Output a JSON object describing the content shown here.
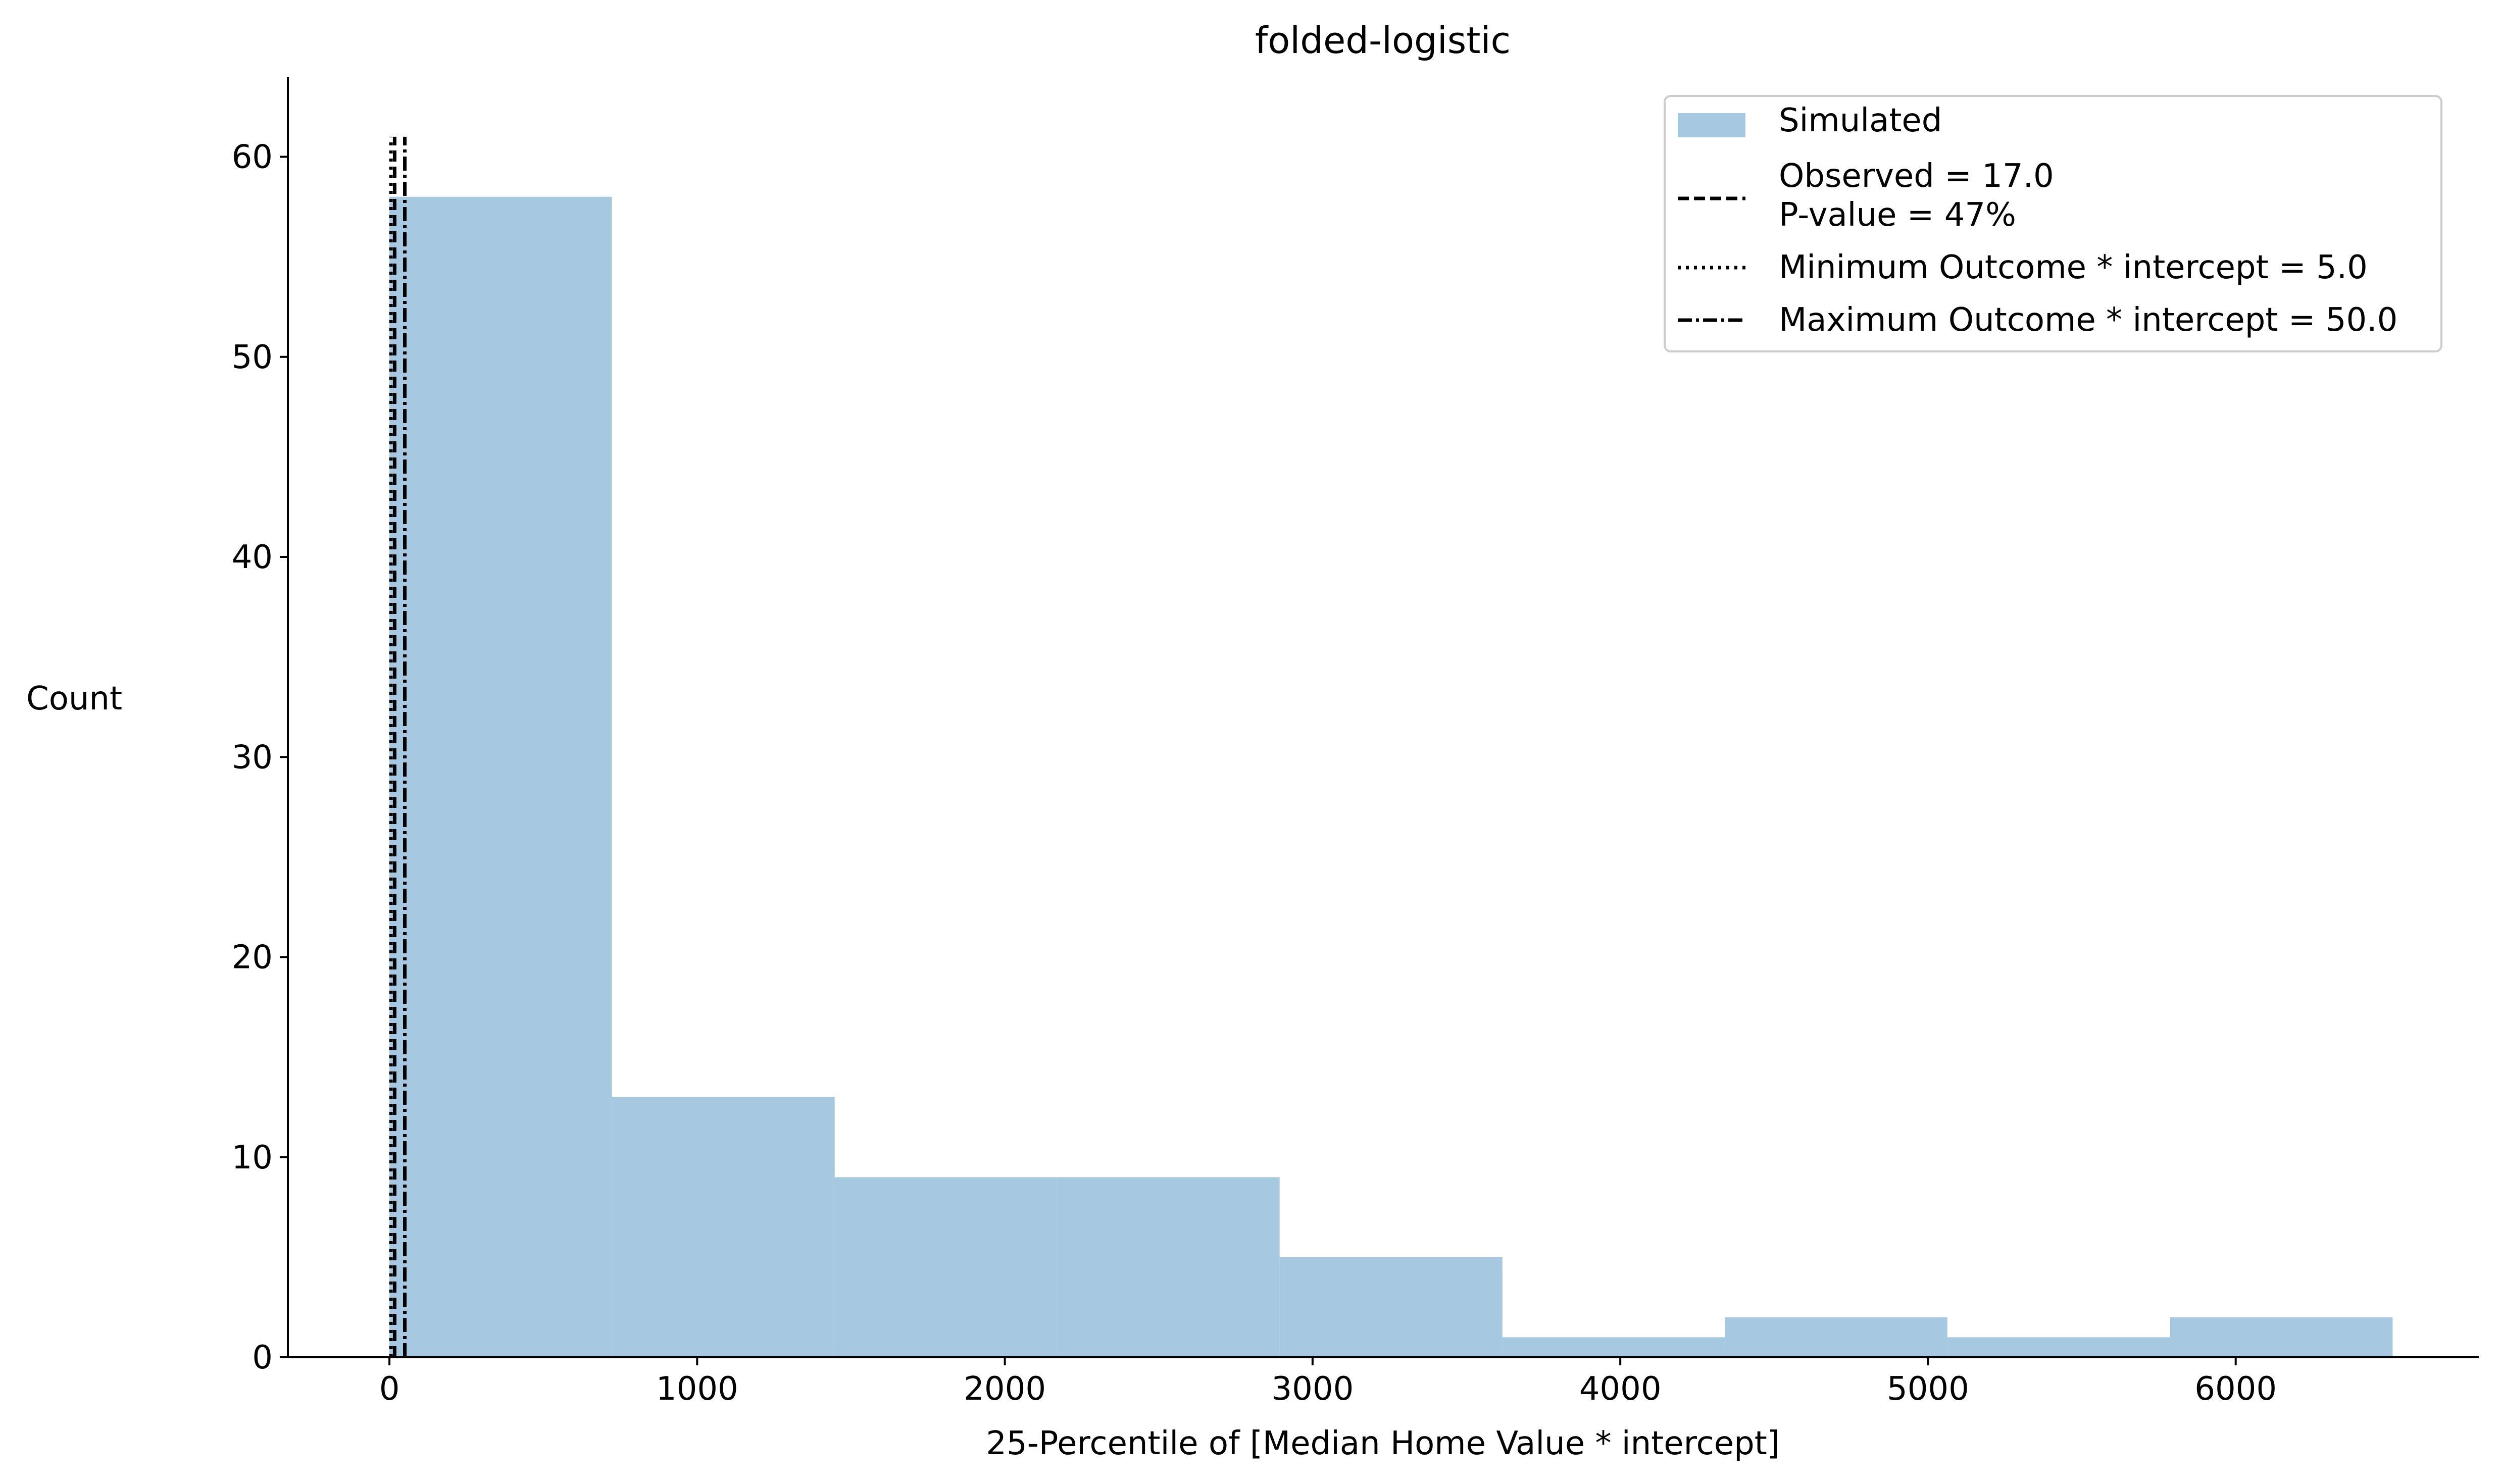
{
  "chart_data": {
    "type": "bar",
    "title": "folded-logistic",
    "xlabel": "25-Percentile of [Median Home Value * intercept]",
    "ylabel": "Count",
    "xlim": [
      -330,
      6790
    ],
    "ylim": [
      0,
      64
    ],
    "xticks": [
      0,
      1000,
      2000,
      3000,
      4000,
      5000,
      6000
    ],
    "yticks": [
      0,
      10,
      20,
      30,
      40,
      50,
      60
    ],
    "bins": [
      {
        "x0": 0,
        "x1": 723,
        "count": 58
      },
      {
        "x0": 723,
        "x1": 1447,
        "count": 13
      },
      {
        "x0": 1447,
        "x1": 2170,
        "count": 9
      },
      {
        "x0": 2170,
        "x1": 2893,
        "count": 9
      },
      {
        "x0": 2893,
        "x1": 3617,
        "count": 5
      },
      {
        "x0": 3617,
        "x1": 4340,
        "count": 1
      },
      {
        "x0": 4340,
        "x1": 5063,
        "count": 2
      },
      {
        "x0": 5063,
        "x1": 5787,
        "count": 1
      },
      {
        "x0": 5787,
        "x1": 6510,
        "count": 2
      }
    ],
    "bar_color": "#a6c8e0",
    "vlines": [
      {
        "x": 17.0,
        "style": "dashed"
      },
      {
        "x": 5.0,
        "style": "dotted"
      },
      {
        "x": 50.0,
        "style": "dashdot"
      }
    ],
    "vline_ymax": 61,
    "grid": false,
    "legend_position": "top-right",
    "legend": [
      {
        "symbol": "patch",
        "lines": [
          "Simulated"
        ]
      },
      {
        "symbol": "dashed",
        "lines": [
          "Observed = 17.0",
          "P-value = 47%"
        ]
      },
      {
        "symbol": "dotted",
        "lines": [
          "Minimum Outcome * intercept = 5.0"
        ]
      },
      {
        "symbol": "dashdot",
        "lines": [
          "Maximum Outcome * intercept = 50.0"
        ]
      }
    ]
  }
}
